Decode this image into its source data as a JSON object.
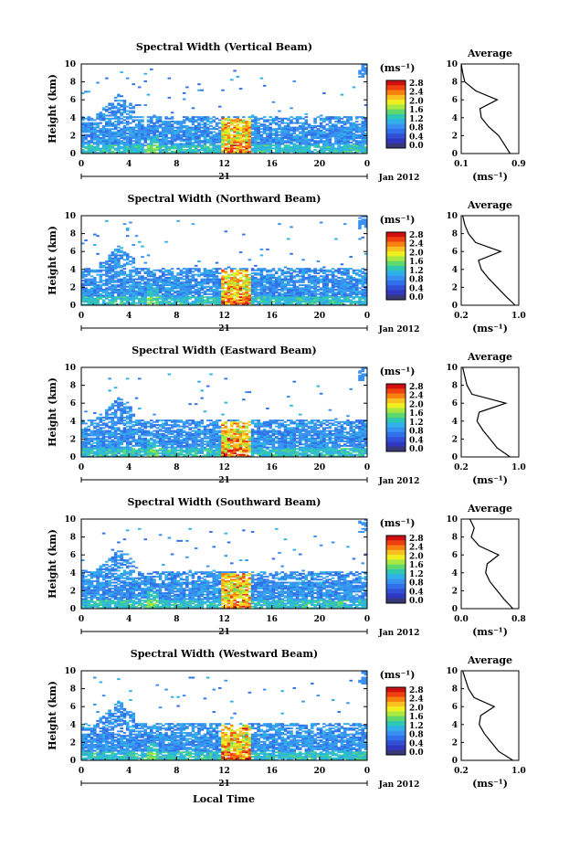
{
  "figure": {
    "date_label": "Jan 2012",
    "day_label": "21",
    "xlabel": "Local Time",
    "ylabel": "Height (km)",
    "unit_label": "(ms⁻¹)",
    "average_title": "Average",
    "average_xlabel": "(ms⁻¹)"
  },
  "colorbar": {
    "ticks": [
      "2.8",
      "2.4",
      "2.0",
      "1.6",
      "1.2",
      "0.8",
      "0.4",
      "0.0"
    ],
    "colors": [
      "#d01010",
      "#f04010",
      "#f88010",
      "#f8c020",
      "#f0f020",
      "#a8e840",
      "#60d870",
      "#30c8b0",
      "#30b0e8",
      "#3890f0",
      "#3070e8",
      "#3050d8",
      "#3038c0",
      "#383878"
    ]
  },
  "chart_data": [
    {
      "type": "heatmap",
      "title": "Spectral Width (Vertical Beam)",
      "x": {
        "ticks": [
          "0",
          "4",
          "8",
          "12",
          "16",
          "20",
          "0"
        ],
        "range": [
          0,
          24
        ]
      },
      "y": {
        "ticks": [
          "0",
          "2",
          "4",
          "6",
          "8",
          "10"
        ],
        "range": [
          0,
          10
        ]
      },
      "avg": {
        "ticks": [
          "0.1",
          "0.9"
        ],
        "range": [
          0.1,
          0.9
        ],
        "profile": [
          [
            0.78,
            0
          ],
          [
            0.7,
            1
          ],
          [
            0.62,
            2
          ],
          [
            0.48,
            3
          ],
          [
            0.38,
            4
          ],
          [
            0.36,
            5
          ],
          [
            0.6,
            6
          ],
          [
            0.3,
            7
          ],
          [
            0.15,
            8
          ],
          [
            0.12,
            9
          ],
          [
            0.1,
            10
          ]
        ]
      }
    },
    {
      "type": "heatmap",
      "title": "Spectral Width (Northward Beam)",
      "x": {
        "ticks": [
          "0",
          "4",
          "8",
          "12",
          "16",
          "20",
          "0"
        ],
        "range": [
          0,
          24
        ]
      },
      "y": {
        "ticks": [
          "0",
          "2",
          "4",
          "6",
          "8",
          "10"
        ],
        "range": [
          0,
          10
        ]
      },
      "avg": {
        "ticks": [
          "0.2",
          "1.0"
        ],
        "range": [
          0.2,
          1.0
        ],
        "profile": [
          [
            0.95,
            0
          ],
          [
            0.82,
            1
          ],
          [
            0.7,
            2
          ],
          [
            0.58,
            3
          ],
          [
            0.48,
            4
          ],
          [
            0.44,
            5
          ],
          [
            0.75,
            6
          ],
          [
            0.4,
            7
          ],
          [
            0.3,
            8
          ],
          [
            0.25,
            9
          ],
          [
            0.22,
            10
          ]
        ]
      }
    },
    {
      "type": "heatmap",
      "title": "Spectral Width (Eastward Beam)",
      "x": {
        "ticks": [
          "0",
          "4",
          "8",
          "12",
          "16",
          "20",
          "0"
        ],
        "range": [
          0,
          24
        ]
      },
      "y": {
        "ticks": [
          "0",
          "2",
          "4",
          "6",
          "8",
          "10"
        ],
        "range": [
          0,
          10
        ]
      },
      "avg": {
        "ticks": [
          "0.2",
          "1.0"
        ],
        "range": [
          0.2,
          1.0
        ],
        "profile": [
          [
            0.88,
            0
          ],
          [
            0.7,
            1
          ],
          [
            0.6,
            2
          ],
          [
            0.5,
            3
          ],
          [
            0.42,
            4
          ],
          [
            0.45,
            5
          ],
          [
            0.82,
            6
          ],
          [
            0.35,
            7
          ],
          [
            0.28,
            8
          ],
          [
            0.25,
            9
          ],
          [
            0.22,
            10
          ]
        ]
      }
    },
    {
      "type": "heatmap",
      "title": "Spectral Width (Southward Beam)",
      "x": {
        "ticks": [
          "0",
          "4",
          "8",
          "12",
          "16",
          "20",
          "0"
        ],
        "range": [
          0,
          24
        ]
      },
      "y": {
        "ticks": [
          "0",
          "2",
          "4",
          "6",
          "8",
          "10"
        ],
        "range": [
          0,
          10
        ]
      },
      "avg": {
        "ticks": [
          "0.0",
          "0.8"
        ],
        "range": [
          0.0,
          0.8
        ],
        "profile": [
          [
            0.72,
            0
          ],
          [
            0.6,
            1
          ],
          [
            0.5,
            2
          ],
          [
            0.4,
            3
          ],
          [
            0.34,
            4
          ],
          [
            0.36,
            5
          ],
          [
            0.52,
            6
          ],
          [
            0.25,
            7
          ],
          [
            0.14,
            8
          ],
          [
            0.18,
            9
          ],
          [
            0.12,
            10
          ]
        ]
      }
    },
    {
      "type": "heatmap",
      "title": "Spectral Width (Westward Beam)",
      "x": {
        "ticks": [
          "0",
          "4",
          "8",
          "12",
          "16",
          "20",
          "0"
        ],
        "range": [
          0,
          24
        ]
      },
      "y": {
        "ticks": [
          "0",
          "2",
          "4",
          "6",
          "8",
          "10"
        ],
        "range": [
          0,
          10
        ]
      },
      "avg": {
        "ticks": [
          "0.2",
          "1.0"
        ],
        "range": [
          0.2,
          1.0
        ],
        "profile": [
          [
            0.92,
            0
          ],
          [
            0.72,
            1
          ],
          [
            0.62,
            2
          ],
          [
            0.52,
            3
          ],
          [
            0.45,
            4
          ],
          [
            0.47,
            5
          ],
          [
            0.66,
            6
          ],
          [
            0.38,
            7
          ],
          [
            0.3,
            8
          ],
          [
            0.26,
            9
          ],
          [
            0.22,
            10
          ]
        ]
      }
    }
  ]
}
